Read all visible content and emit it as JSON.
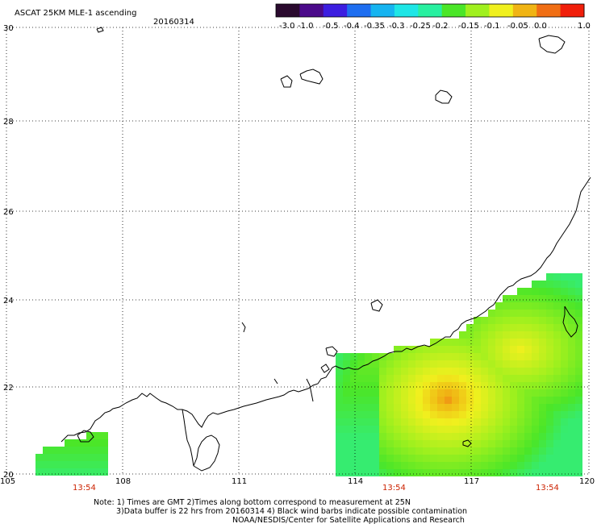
{
  "header": {
    "product": "ASCAT 25KM MLE-1 ascending",
    "date": "20160314"
  },
  "colorbar": {
    "labels": [
      "-3.0",
      "-1.0",
      "-0.5",
      "-0.4",
      "-0.35",
      "-0.3",
      "-0.25",
      "-0.2",
      "-0.15",
      "-0.1",
      "-0.05",
      "0.0",
      "1.0"
    ],
    "colors": [
      "#2a0a2e",
      "#4b0a8a",
      "#3c1ee0",
      "#1e6ef0",
      "#16b4f0",
      "#1ee6e6",
      "#28f0a0",
      "#4be628",
      "#a0f01e",
      "#f0f01e",
      "#f0b414",
      "#f06e14",
      "#f01e0a"
    ]
  },
  "map": {
    "lon_ticks": [
      "105",
      "108",
      "111",
      "114",
      "117",
      "120"
    ],
    "lat_ticks": [
      "20",
      "22",
      "24",
      "26",
      "28",
      "30"
    ],
    "pass_times": [
      "13:54",
      "13:54",
      "13:54"
    ]
  },
  "notes": [
    "Note: 1) Times are GMT 2)Times along bottom correspond to measurement at 25N",
    "3)Data buffer is 22 hrs from 20160314 4) Black wind barbs indicate possible contamination",
    "NOAA/NESDIS/Center for Satellite Applications and Research"
  ]
}
